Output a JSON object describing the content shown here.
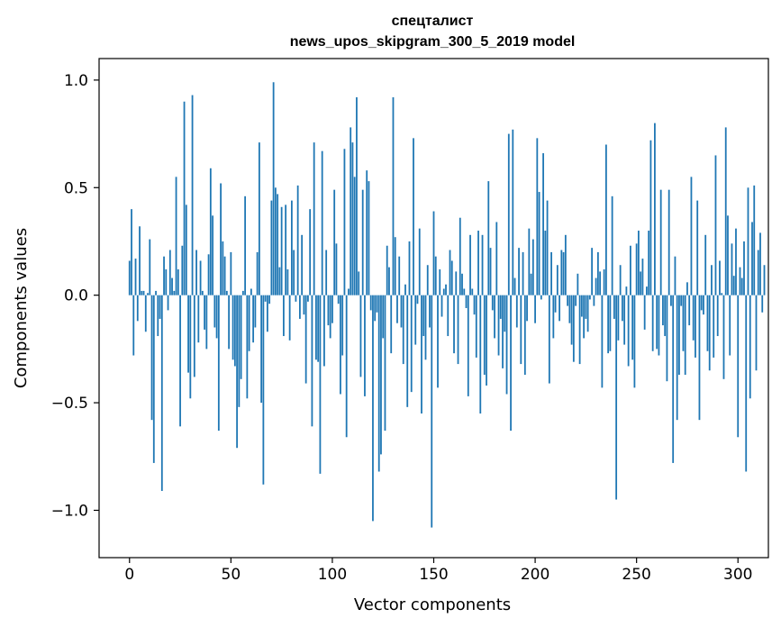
{
  "chart_data": {
    "type": "bar",
    "title": "спецталист",
    "subtitle": "news_upos_skipgram_300_5_2019 model",
    "xlabel": "Vector components",
    "ylabel": "Components values",
    "xlim": [
      -15,
      315
    ],
    "ylim": [
      -1.22,
      1.1
    ],
    "xticks": [
      0,
      50,
      100,
      150,
      200,
      250,
      300
    ],
    "xtick_labels": [
      "0",
      "50",
      "100",
      "150",
      "200",
      "250",
      "300"
    ],
    "yticks": [
      1.0,
      0.5,
      0.0,
      -0.5,
      -1.0
    ],
    "ytick_labels": [
      "1.0",
      "0.5",
      "0.0",
      "−0.5",
      "−1.0"
    ],
    "bar_color": "#1f77b4",
    "grid": false,
    "values": [
      0.16,
      0.4,
      -0.28,
      0.17,
      -0.12,
      0.32,
      0.02,
      0.02,
      -0.17,
      0.01,
      0.26,
      -0.58,
      -0.78,
      0.02,
      -0.19,
      -0.11,
      -0.91,
      0.18,
      0.12,
      -0.07,
      0.21,
      0.08,
      0.02,
      0.55,
      0.12,
      -0.61,
      0.23,
      0.9,
      0.42,
      -0.36,
      -0.48,
      0.93,
      -0.38,
      0.21,
      -0.22,
      0.16,
      0.02,
      -0.16,
      -0.25,
      0.19,
      0.59,
      0.37,
      -0.15,
      -0.2,
      -0.63,
      0.52,
      0.25,
      0.18,
      0.02,
      -0.25,
      0.2,
      -0.3,
      -0.33,
      -0.71,
      -0.52,
      -0.39,
      0.02,
      0.46,
      -0.48,
      -0.26,
      0.03,
      -0.22,
      -0.15,
      0.2,
      0.71,
      -0.5,
      -0.88,
      -0.03,
      -0.17,
      -0.04,
      0.44,
      0.99,
      0.5,
      0.47,
      0.13,
      0.41,
      -0.19,
      0.42,
      0.12,
      -0.21,
      0.44,
      0.21,
      -0.03,
      0.51,
      -0.11,
      0.28,
      -0.09,
      -0.41,
      -0.03,
      0.4,
      -0.61,
      0.71,
      -0.3,
      -0.31,
      -0.83,
      0.67,
      -0.33,
      0.21,
      -0.14,
      -0.2,
      -0.13,
      0.49,
      0.24,
      -0.04,
      -0.46,
      -0.28,
      0.68,
      -0.66,
      0.03,
      0.78,
      0.71,
      0.55,
      0.92,
      0.11,
      -0.38,
      0.49,
      -0.47,
      0.58,
      0.53,
      -0.07,
      -1.05,
      -0.12,
      -0.08,
      -0.82,
      -0.74,
      -0.2,
      -0.63,
      0.23,
      0.13,
      -0.27,
      0.92,
      0.27,
      -0.13,
      0.18,
      -0.15,
      -0.32,
      0.05,
      -0.52,
      0.25,
      -0.45,
      0.73,
      -0.23,
      -0.04,
      0.31,
      -0.55,
      -0.19,
      -0.3,
      0.14,
      -0.15,
      -1.08,
      0.39,
      0.18,
      -0.43,
      0.12,
      -0.1,
      0.03,
      0.05,
      -0.19,
      0.21,
      0.16,
      -0.27,
      0.11,
      -0.32,
      0.36,
      0.1,
      0.03,
      -0.06,
      -0.47,
      0.28,
      0.03,
      -0.09,
      -0.29,
      0.3,
      -0.55,
      0.28,
      -0.37,
      -0.42,
      0.53,
      0.22,
      -0.07,
      -0.2,
      0.34,
      -0.28,
      -0.11,
      -0.34,
      -0.17,
      -0.46,
      0.75,
      -0.63,
      0.77,
      0.08,
      -0.15,
      0.22,
      -0.32,
      0.2,
      -0.37,
      -0.12,
      0.31,
      0.1,
      0.26,
      -0.13,
      0.73,
      0.48,
      -0.02,
      0.66,
      0.3,
      0.44,
      -0.41,
      0.2,
      -0.2,
      -0.08,
      0.14,
      -0.12,
      0.21,
      0.2,
      0.28,
      -0.05,
      -0.13,
      -0.23,
      -0.31,
      -0.05,
      0.1,
      -0.32,
      -0.1,
      -0.2,
      -0.11,
      -0.17,
      -0.02,
      0.22,
      -0.05,
      0.08,
      0.2,
      0.11,
      -0.43,
      0.12,
      0.7,
      -0.27,
      -0.26,
      0.46,
      -0.11,
      -0.95,
      -0.21,
      0.14,
      -0.12,
      -0.23,
      0.04,
      -0.33,
      0.23,
      -0.3,
      -0.43,
      0.24,
      0.3,
      0.11,
      0.17,
      -0.16,
      0.04,
      0.3,
      0.72,
      -0.26,
      0.8,
      -0.25,
      -0.28,
      0.49,
      -0.14,
      -0.19,
      -0.4,
      0.49,
      -0.05,
      -0.78,
      0.18,
      -0.58,
      -0.37,
      -0.05,
      -0.26,
      -0.37,
      0.06,
      -0.14,
      0.55,
      -0.21,
      -0.29,
      0.44,
      -0.58,
      -0.07,
      -0.09,
      0.28,
      -0.26,
      -0.35,
      0.14,
      -0.29,
      0.65,
      -0.19,
      0.16,
      0.01,
      -0.39,
      0.78,
      0.37,
      -0.28,
      0.24,
      0.09,
      0.31,
      -0.66,
      0.13,
      0.08,
      0.25,
      -0.82,
      0.5,
      -0.48,
      0.34,
      0.51,
      -0.35,
      0.21,
      0.29,
      -0.08,
      0.14
    ]
  }
}
